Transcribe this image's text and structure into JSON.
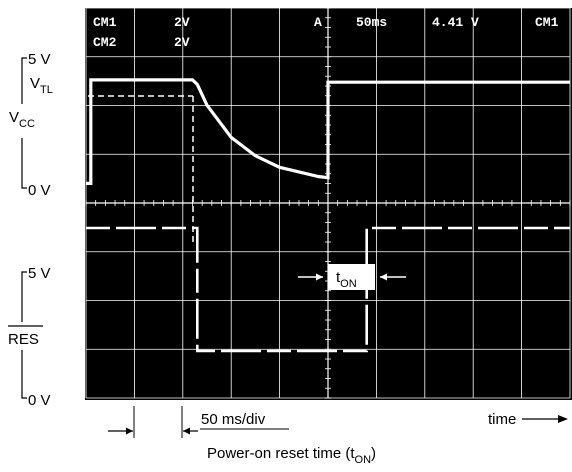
{
  "header": {
    "ch1_name": "CM1",
    "ch1_scale": "2V",
    "ch2_name": "CM2",
    "ch2_scale": "2V",
    "trigger_marker": "A",
    "timebase": "50ms",
    "trigger_level": "4.41 V",
    "trigger_source": "CM1"
  },
  "labels": {
    "vcc_5v": "5 V",
    "vcc_vtl_main": "V",
    "vcc_vtl_sub": "TL",
    "vcc_name_main": "V",
    "vcc_name_sub": "CC",
    "vcc_0v": "0 V",
    "res_5v": "5 V",
    "res_name": "RES",
    "res_0v": "0 V",
    "ton_main": "t",
    "ton_sub": "ON",
    "scale": "50 ms/div",
    "time_axis": "time",
    "caption_main": "Power-on reset time (t",
    "caption_sub": "ON",
    "caption_end": ")"
  },
  "colors": {
    "screen": "#000000",
    "grid": "#ffffff",
    "trace": "#ffffff",
    "label_bg": "#ffffff",
    "text": "#000000"
  },
  "chart_data": {
    "type": "line",
    "x_unit": "ms",
    "x_divisions": 10,
    "x_per_div": 50,
    "xlim": [
      0,
      500
    ],
    "series": [
      {
        "name": "CM1",
        "x": [
          0,
          5,
          5,
          25,
          50,
          75,
          100,
          110,
          115,
          125,
          150,
          175,
          200,
          220,
          240,
          250,
          250,
          275,
          300,
          350,
          400,
          450,
          500
        ],
        "y": [
          0.2,
          0.2,
          4.7,
          4.7,
          4.7,
          4.7,
          4.7,
          4.7,
          4.5,
          3.6,
          2.2,
          1.4,
          0.9,
          0.7,
          0.5,
          0.45,
          4.6,
          4.6,
          4.6,
          4.6,
          4.6,
          4.6,
          4.6
        ]
      },
      {
        "name": "CM2",
        "x": [
          0,
          5,
          5,
          25,
          50,
          75,
          100,
          115,
          115,
          150,
          200,
          250,
          290,
          290,
          350,
          400,
          450,
          500
        ],
        "y": [
          5.0,
          5.0,
          5.0,
          5.0,
          5.0,
          5.0,
          5.0,
          5.0,
          0.0,
          0.0,
          0.0,
          0.0,
          0.0,
          5.0,
          5.0,
          5.0,
          5.0,
          5.0
        ]
      }
    ],
    "vtl_y": 4.0,
    "t_on_ms": [
      115,
      250
    ]
  }
}
